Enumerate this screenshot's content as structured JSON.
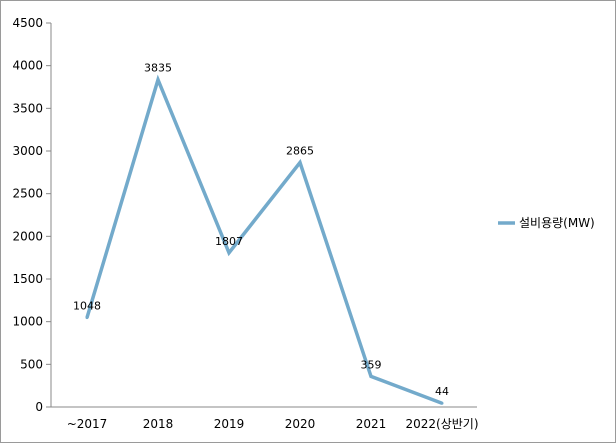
{
  "chart_data": {
    "type": "line",
    "title": "",
    "xlabel": "",
    "ylabel": "",
    "categories": [
      "~2017",
      "2018",
      "2019",
      "2020",
      "2021",
      "2022(상반기)"
    ],
    "series": [
      {
        "name": "설비용량(MW)",
        "values": [
          1048,
          3835,
          1807,
          2865,
          359,
          44
        ],
        "labels": [
          "1048",
          "3835",
          "1807",
          "2865",
          "359",
          "44"
        ],
        "color": "#73aacb"
      }
    ],
    "ylim": [
      0,
      4500
    ],
    "yticks": [
      "0",
      "500",
      "1000",
      "1500",
      "2000",
      "2500",
      "3000",
      "3500",
      "4000",
      "4500"
    ],
    "grid": false,
    "legend_position": "right"
  }
}
